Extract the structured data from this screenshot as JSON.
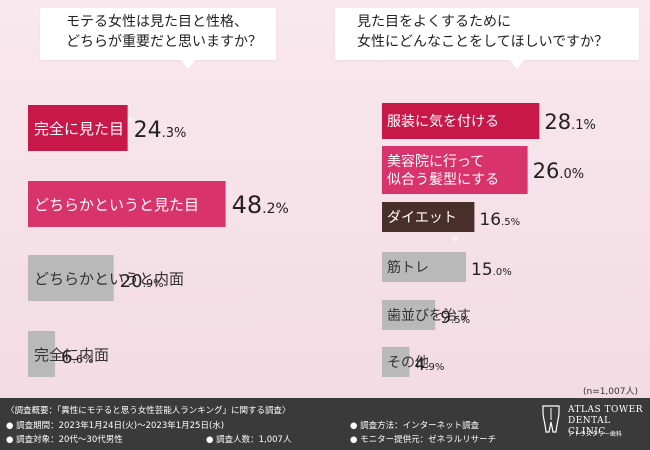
{
  "questions": {
    "left": [
      "モテる女性は見た目と性格、",
      "どちらが重要だと思いますか？"
    ],
    "right": [
      "見た目をよくするために",
      "女性にどんなことをしてほしいですか？"
    ]
  },
  "sample_note": "(n=1,007人)",
  "colors": {
    "top": "#c8184a",
    "mid": "#d9336b",
    "gray": "#b9b9b9",
    "dark": "#4a2e2a"
  },
  "chart_data": [
    {
      "type": "bar",
      "orientation": "horizontal",
      "categories": [
        "完全に見た目",
        "どちらかというと見た目",
        "どちらかというと内面",
        "完全に内面"
      ],
      "values": [
        24.3,
        48.2,
        20.9,
        6.6
      ],
      "value_labels": [
        [
          "24",
          ".3",
          "%"
        ],
        [
          "48",
          ".2",
          "%"
        ],
        [
          "20",
          ".9",
          "%"
        ],
        [
          "6",
          ".6",
          "%"
        ]
      ]
    },
    {
      "type": "bar",
      "orientation": "horizontal",
      "categories": [
        [
          "服装に気を付ける"
        ],
        [
          "美容院に行って",
          "似合う髪型にする"
        ],
        [
          "ダイエット"
        ],
        [
          "筋トレ"
        ],
        [
          "歯並びを治す"
        ],
        [
          "その他"
        ]
      ],
      "values": [
        28.1,
        26.0,
        16.5,
        15.0,
        9.5,
        4.9
      ],
      "value_labels": [
        [
          "28",
          ".1",
          "%"
        ],
        [
          "26",
          ".0",
          "%"
        ],
        [
          "16",
          ".5",
          "%"
        ],
        [
          "15",
          ".0",
          "%"
        ],
        [
          "9",
          ".5",
          "%"
        ],
        [
          "4",
          ".9",
          "%"
        ]
      ]
    }
  ],
  "footer": {
    "survey_title": "〈調査概要：「異性にモテると思う女性芸能人ランキング」に関する調査〉",
    "period": "● 調査期間：2023年1月24日(火)～2023年1月25日(水)",
    "target": "● 調査対象：20代～30代男性",
    "count": "● 調査人数：1,007人",
    "method": "● 調査方法：インターネット調査",
    "provider": "● モニター提供元：ゼネラルリサーチ",
    "logo_name": [
      "ATLAS TOWER",
      "DENTAL CLINIC"
    ],
    "logo_sub": "アトラスタワー歯科"
  }
}
